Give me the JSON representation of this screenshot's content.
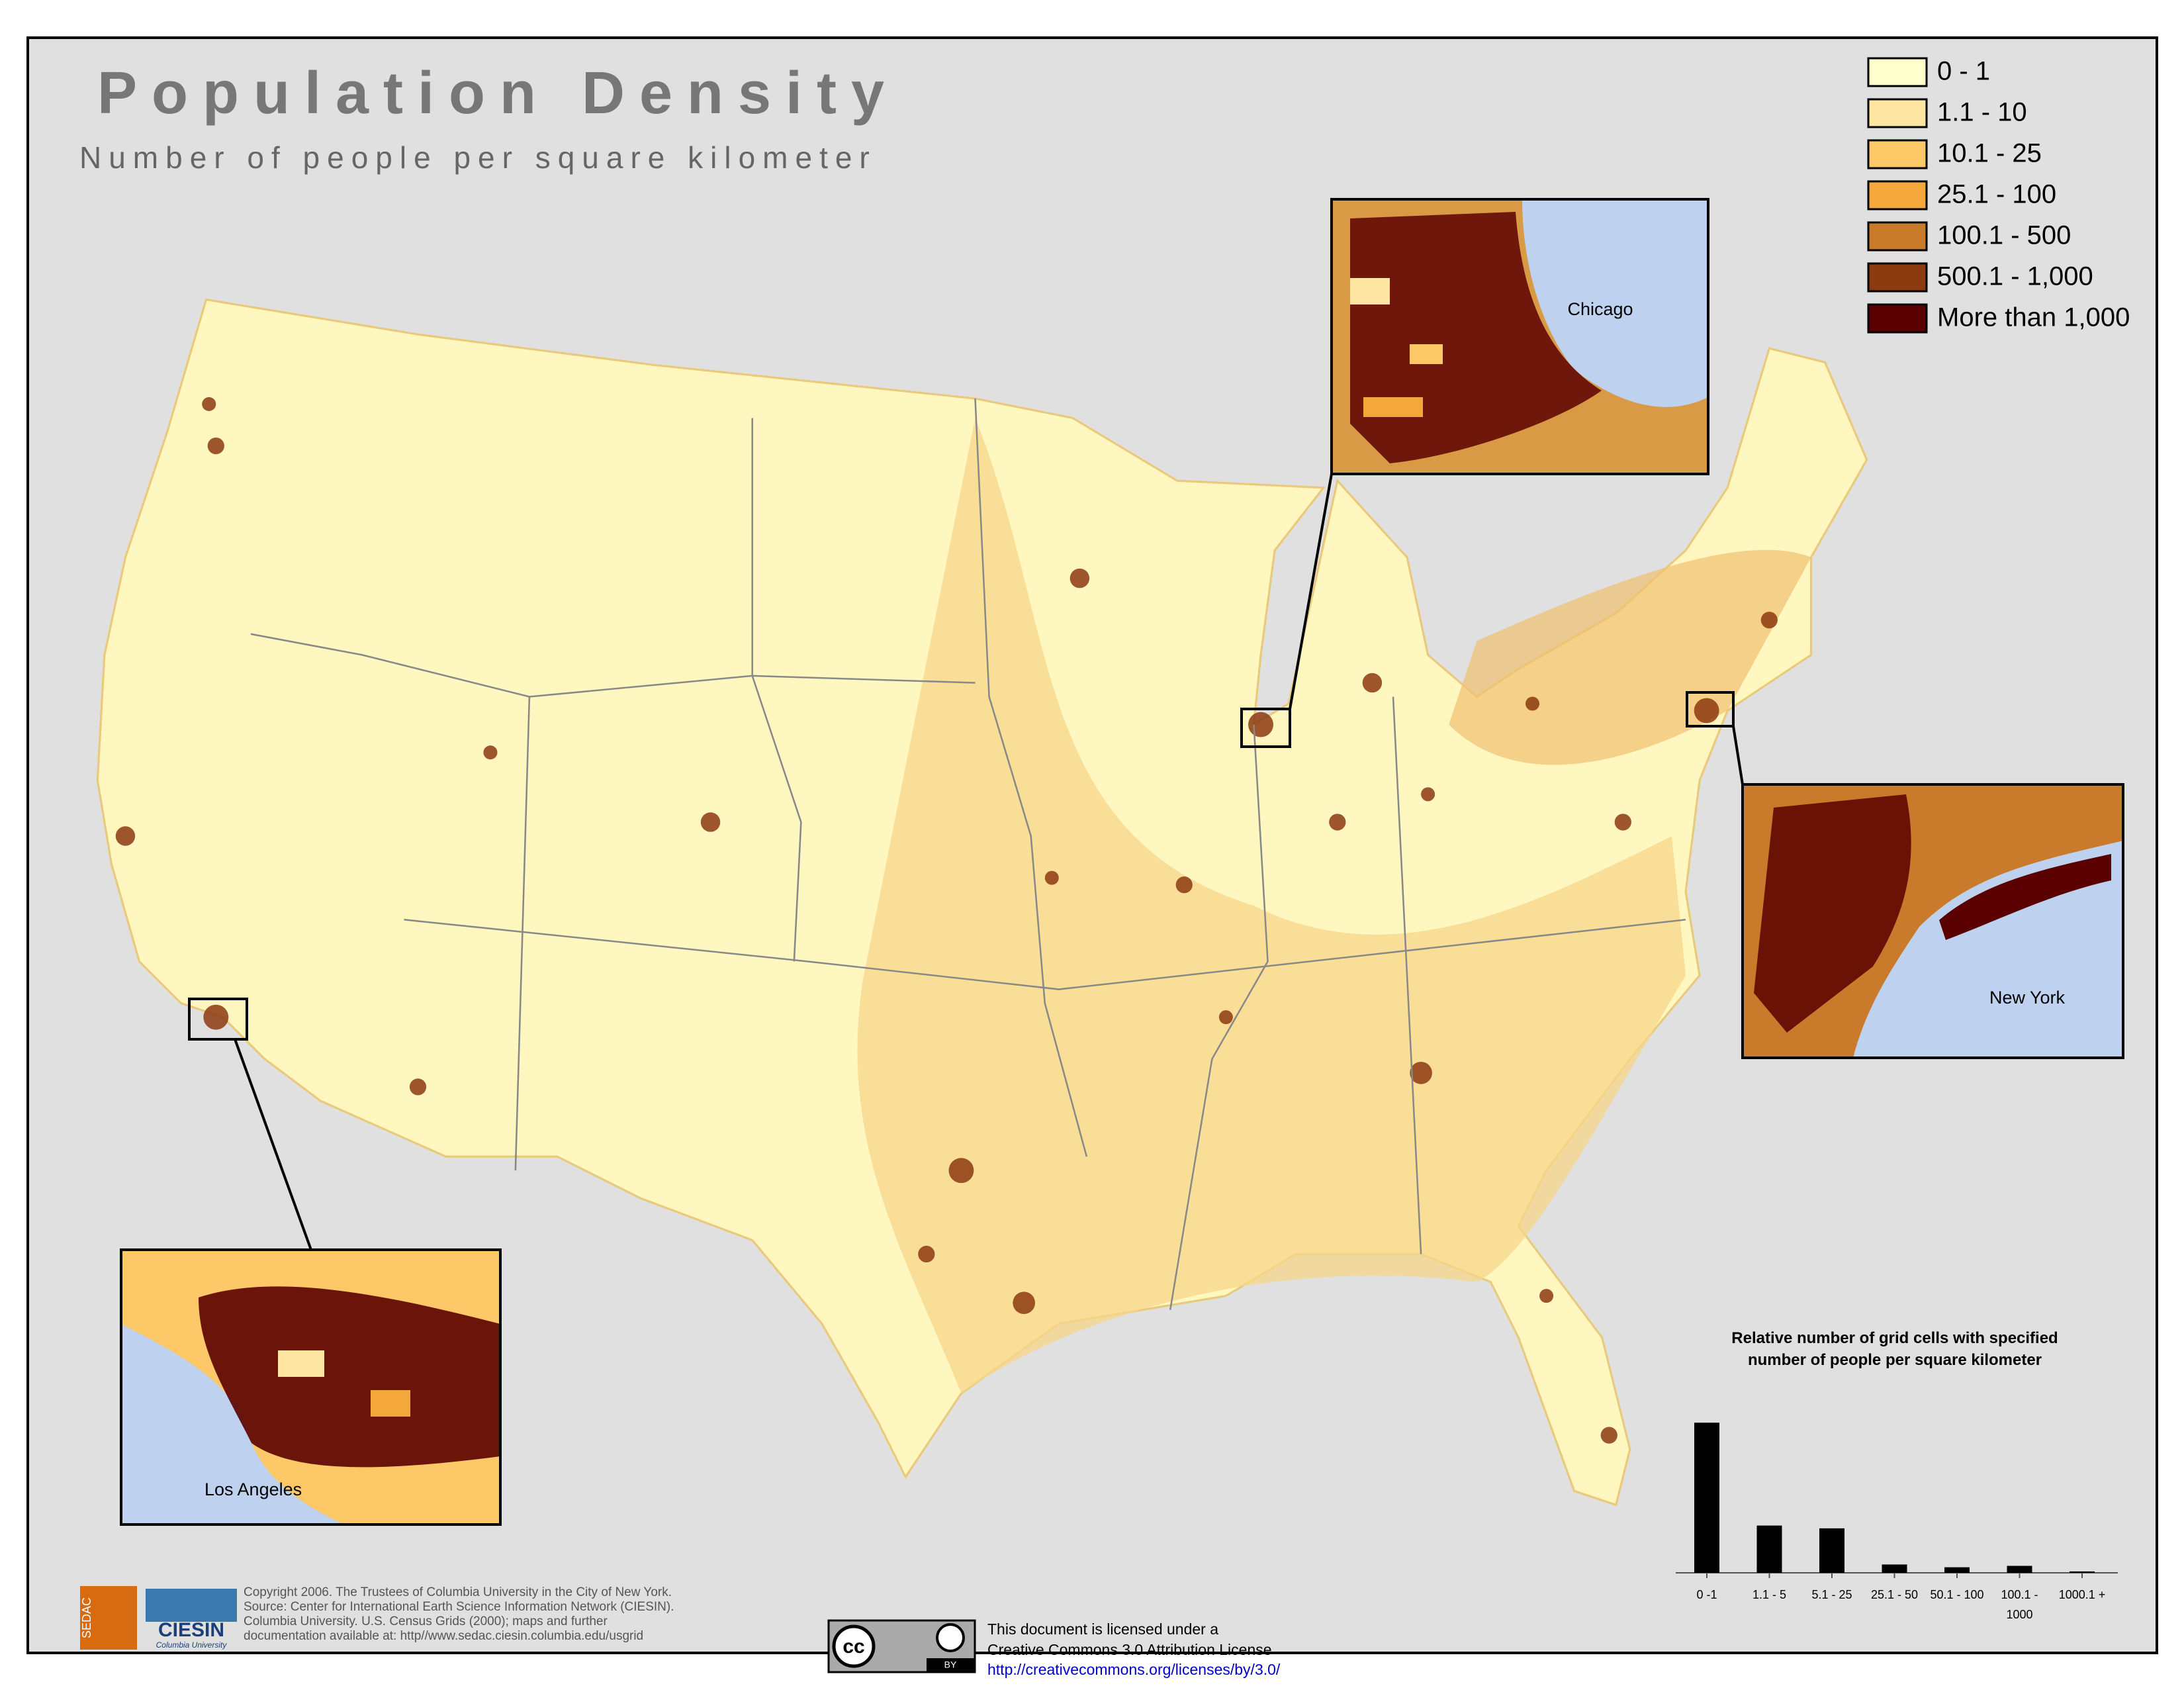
{
  "header": {
    "title": "Population Density",
    "subtitle": "Number of people per square kilometer"
  },
  "legend": {
    "items": [
      {
        "label": "0 - 1",
        "color": "#ffffcc"
      },
      {
        "label": "1.1 - 10",
        "color": "#fee6a2"
      },
      {
        "label": "10.1 - 25",
        "color": "#fdc867"
      },
      {
        "label": "25.1 - 100",
        "color": "#f4a73a"
      },
      {
        "label": "100.1 - 500",
        "color": "#c97a2b"
      },
      {
        "label": "500.1 - 1,000",
        "color": "#8c3a10"
      },
      {
        "label": "More than 1,000",
        "color": "#5a0000"
      }
    ]
  },
  "insets": [
    {
      "label": "Chicago"
    },
    {
      "label": "New York"
    },
    {
      "label": "Los Angeles"
    }
  ],
  "chart_data": {
    "type": "bar",
    "title": "Relative number of grid cells with specified number of people per square kilometer",
    "categories": [
      "0 -1",
      "1.1 - 5",
      "5.1 - 25",
      "25.1 - 50",
      "50.1 - 100",
      "100.1 - 1000",
      "1000.1 +"
    ],
    "values": [
      108,
      34,
      32,
      6,
      4,
      5,
      1
    ],
    "color": "#000000"
  },
  "logos": {
    "sedac": "SEDAC",
    "ciesin": "CIESIN",
    "ciesin_sub": "Columbia University"
  },
  "credits": {
    "lines": [
      "Copyright 2006.  The Trustees of Columbia University in the City of New York.",
      "Source: Center for International Earth Science Information Network (CIESIN).",
      "Columbia University.  U.S. Census Grids (2000); maps and further",
      "documentation available at: http//www.sedac.ciesin.columbia.edu/usgrid"
    ]
  },
  "license": {
    "icon": "cc",
    "badge": "BY",
    "lines": [
      "This document is licensed under a",
      "Creative Commons 3.0 Attribution License"
    ],
    "url": "http://creativecommons.org/licenses/by/3.0/"
  }
}
